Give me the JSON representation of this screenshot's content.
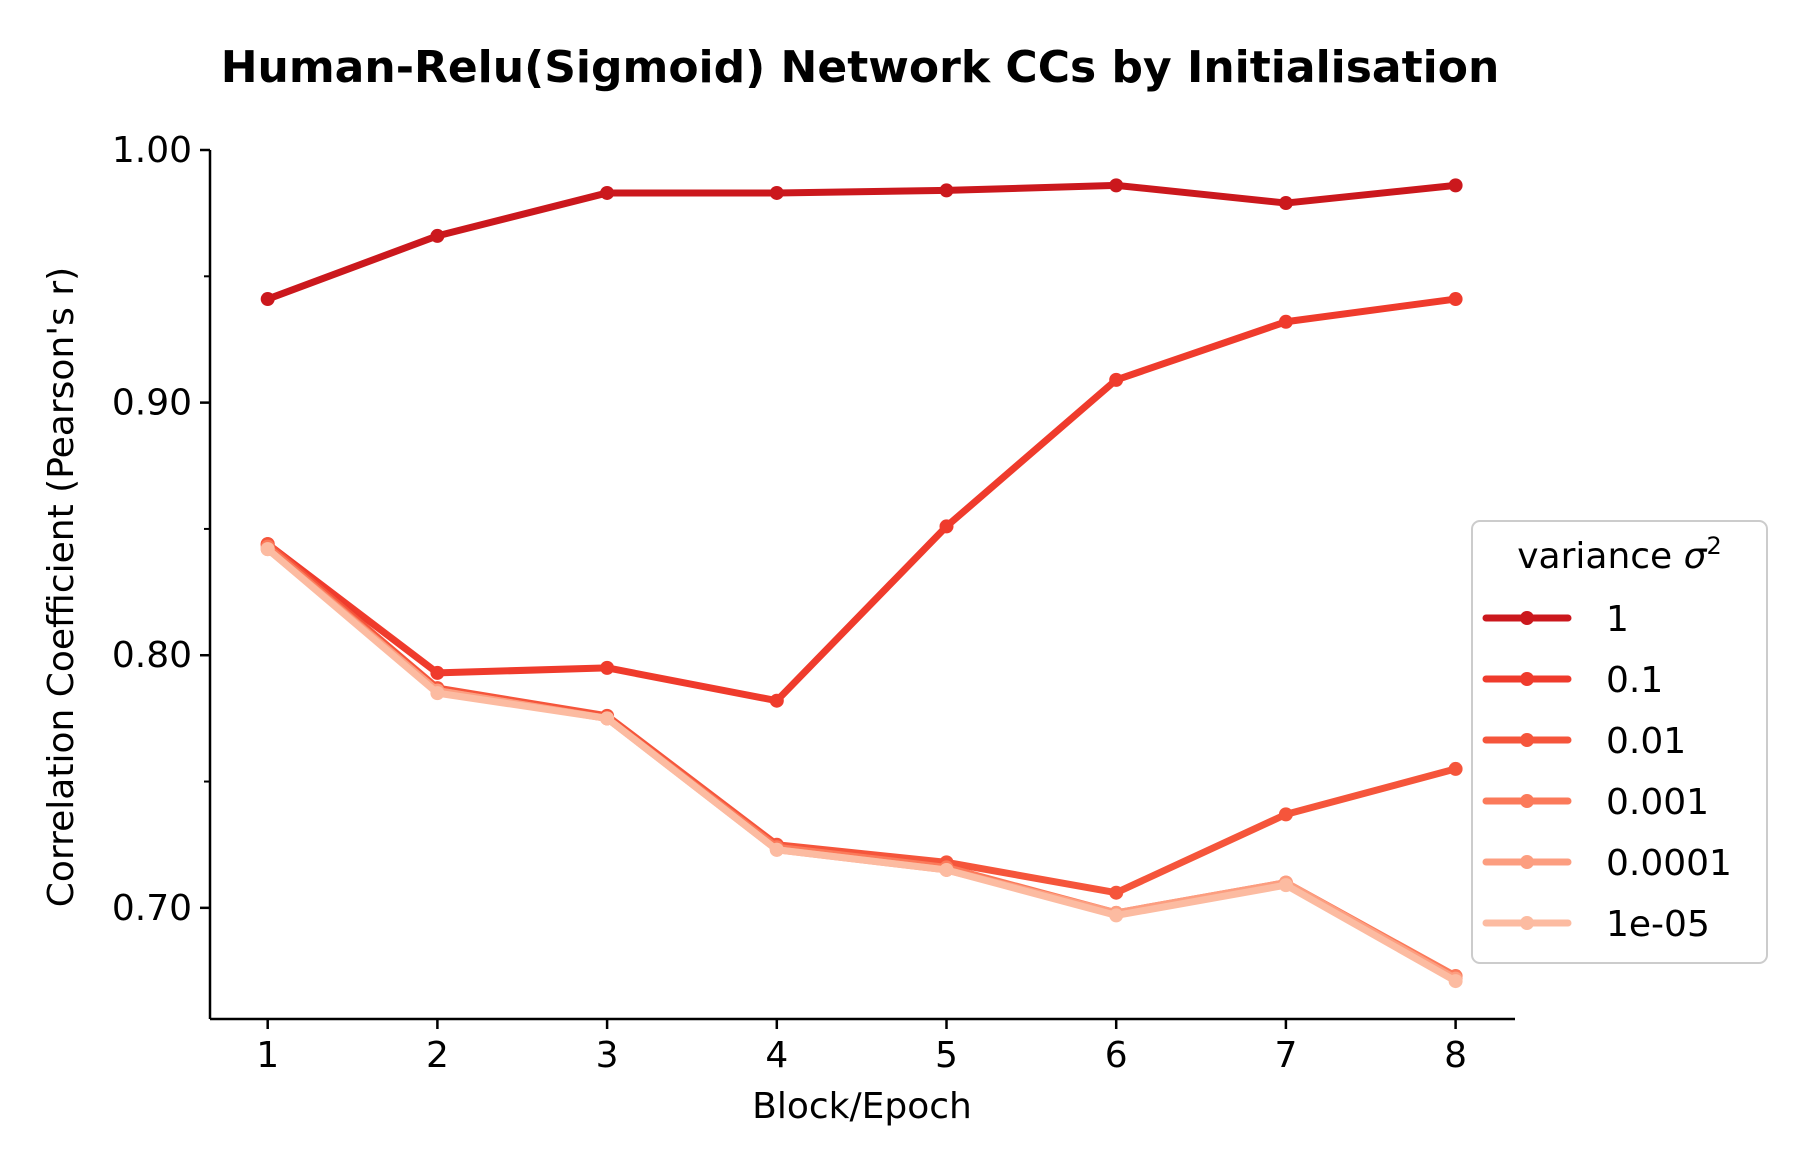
{
  "chart_data": {
    "type": "line",
    "title": "Human-Relu(Sigmoid) Network CCs by Initialisation",
    "xlabel": "Block/Epoch",
    "ylabel": "Correlation Coefficient (Pearson's r)",
    "x": [
      1,
      2,
      3,
      4,
      5,
      6,
      7,
      8
    ],
    "x_ticks": [
      "1",
      "2",
      "3",
      "4",
      "5",
      "6",
      "7",
      "8"
    ],
    "xlim": [
      0.66,
      8.35
    ],
    "ylim": [
      0.656,
      1.0
    ],
    "y_ticks": [
      "1.00",
      "0.90",
      "0.80",
      "0.70"
    ],
    "y_tick_values": [
      1.0,
      0.9,
      0.8,
      0.7
    ],
    "y_minor_tick_values": [
      0.95,
      0.85,
      0.75
    ],
    "grid": false,
    "legend": {
      "title": "variance σ²",
      "title_prefix": "variance ",
      "title_symbol": "σ",
      "title_exponent": "2",
      "placement": "right"
    },
    "series": [
      {
        "name": "1",
        "color": "#cb181d",
        "values": [
          0.941,
          0.966,
          0.983,
          0.983,
          0.984,
          0.986,
          0.979,
          0.986
        ]
      },
      {
        "name": "0.1",
        "color": "#ef3b2c",
        "values": [
          0.844,
          0.793,
          0.795,
          0.782,
          0.851,
          0.909,
          0.932,
          0.941
        ]
      },
      {
        "name": "0.01",
        "color": "#f5553b",
        "values": [
          0.844,
          0.787,
          0.776,
          0.725,
          0.718,
          0.706,
          0.737,
          0.755
        ]
      },
      {
        "name": "0.001",
        "color": "#fb7a5a",
        "values": [
          0.843,
          0.786,
          0.775,
          0.724,
          0.716,
          0.698,
          0.71,
          0.673
        ]
      },
      {
        "name": "0.0001",
        "color": "#fc9e80",
        "values": [
          0.842,
          0.786,
          0.775,
          0.723,
          0.715,
          0.698,
          0.71,
          0.672
        ]
      },
      {
        "name": "1e-05",
        "color": "#fcbba1",
        "values": [
          0.842,
          0.785,
          0.775,
          0.723,
          0.715,
          0.697,
          0.709,
          0.671
        ]
      }
    ]
  }
}
